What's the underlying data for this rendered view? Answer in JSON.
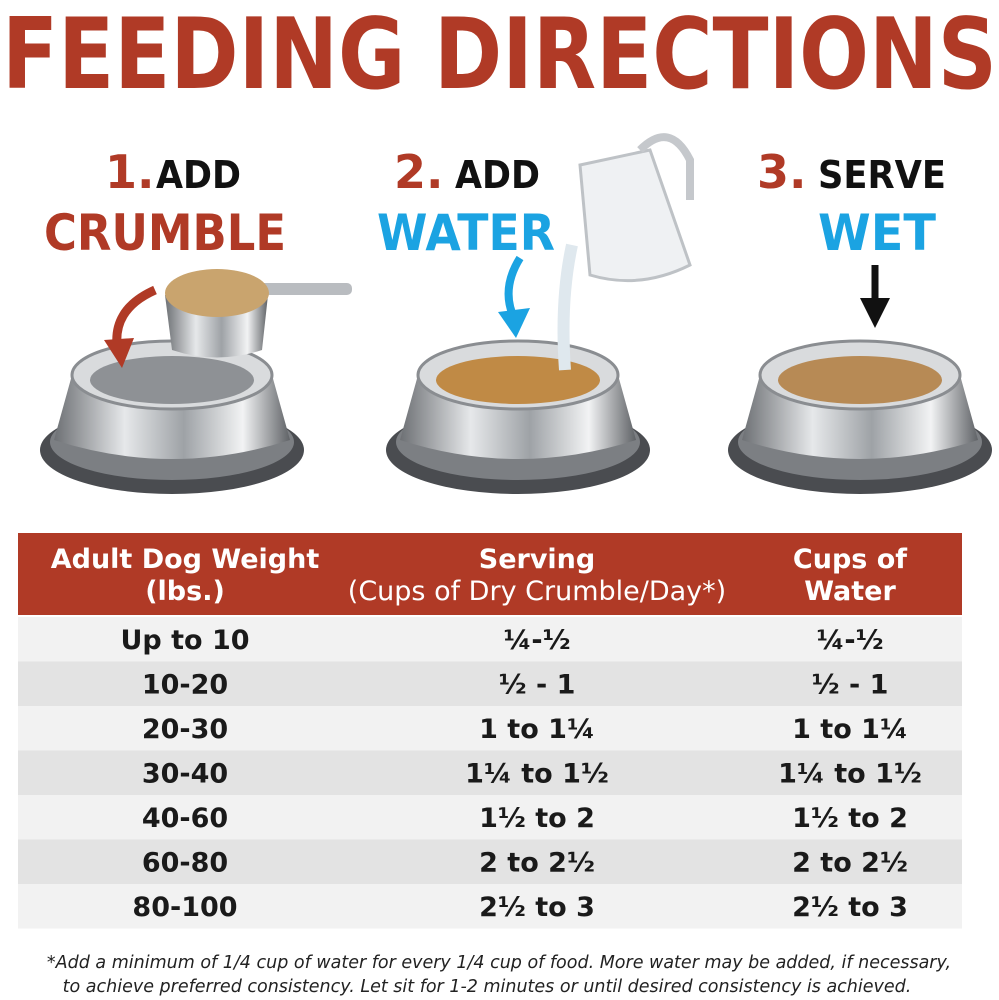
{
  "header": {
    "title": "FEEDING DIRECTIONS"
  },
  "steps": [
    {
      "number": "1.",
      "verb": "ADD",
      "object": "CRUMBLE"
    },
    {
      "number": "2.",
      "verb": "ADD",
      "object": "WATER"
    },
    {
      "number": "3.",
      "verb": "SERVE",
      "object": "WET"
    }
  ],
  "table": {
    "columns": [
      [
        "Adult Dog Weight",
        "(lbs.)"
      ],
      [
        "Serving",
        "(Cups of Dry Crumble/Day*)"
      ],
      [
        "Cups of",
        "Water"
      ]
    ],
    "rows": [
      [
        "Up to 10",
        "¼-½",
        "¼-½"
      ],
      [
        "10-20",
        "½ - 1",
        "½ - 1"
      ],
      [
        "20-30",
        "1 to 1¼",
        "1 to 1¼"
      ],
      [
        "30-40",
        "1¼ to 1½",
        "1¼ to 1½"
      ],
      [
        "40-60",
        "1½ to 2",
        "1½ to 2"
      ],
      [
        "60-80",
        "2 to 2½",
        "2 to 2½"
      ],
      [
        "80-100",
        "2½ to 3",
        "2½ to 3"
      ]
    ]
  },
  "footnote": [
    "*Add a minimum of 1/4 cup of water for every 1/4 cup of food. More water may be added, if necessary,",
    "to achieve preferred consistency. Let sit for 1-2 minutes or until desired consistency is achieved."
  ]
}
